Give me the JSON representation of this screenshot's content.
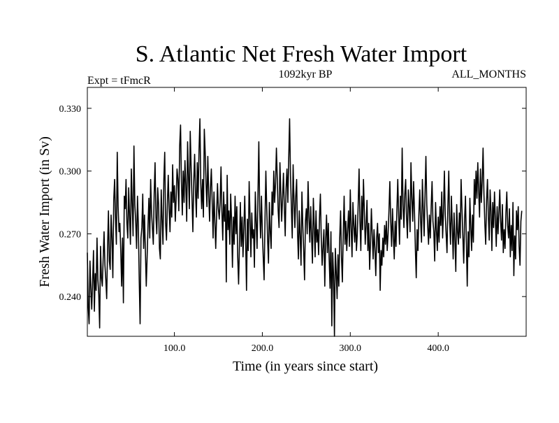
{
  "chart_data": {
    "type": "line",
    "title": "S. Atlantic Net Fresh Water Import",
    "experiment_label": "Expt = tFmcR",
    "period_label": "1092kyr BP",
    "months_label": "ALL_MONTHS",
    "xlabel": "Time (in years since start)",
    "ylabel": "Fresh Water Import (in Sv)",
    "xlim": [
      1,
      500
    ],
    "ylim": [
      0.221,
      0.34
    ],
    "x_ticks": [
      100,
      200,
      300,
      400
    ],
    "x_tick_labels": [
      "100.0",
      "200.0",
      "300.0",
      "400.0"
    ],
    "y_ticks": [
      0.24,
      0.27,
      0.3,
      0.33
    ],
    "y_tick_labels": [
      "0.240",
      "0.270",
      "0.300",
      "0.330"
    ],
    "grid": false,
    "series": [
      {
        "name": "Fresh Water Import",
        "x_start": 1,
        "x_step": 1,
        "values": [
          0.261,
          0.235,
          0.227,
          0.257,
          0.244,
          0.234,
          0.247,
          0.262,
          0.233,
          0.251,
          0.243,
          0.268,
          0.248,
          0.241,
          0.225,
          0.264,
          0.249,
          0.245,
          0.258,
          0.271,
          0.255,
          0.248,
          0.239,
          0.263,
          0.281,
          0.257,
          0.253,
          0.279,
          0.268,
          0.249,
          0.286,
          0.296,
          0.278,
          0.265,
          0.309,
          0.283,
          0.271,
          0.275,
          0.262,
          0.245,
          0.268,
          0.237,
          0.288,
          0.282,
          0.296,
          0.275,
          0.268,
          0.292,
          0.278,
          0.265,
          0.301,
          0.285,
          0.269,
          0.312,
          0.284,
          0.276,
          0.263,
          0.288,
          0.274,
          0.248,
          0.227,
          0.268,
          0.273,
          0.289,
          0.263,
          0.279,
          0.262,
          0.245,
          0.259,
          0.274,
          0.287,
          0.268,
          0.296,
          0.28,
          0.273,
          0.265,
          0.289,
          0.304,
          0.278,
          0.27,
          0.292,
          0.284,
          0.263,
          0.258,
          0.291,
          0.277,
          0.265,
          0.296,
          0.309,
          0.275,
          0.267,
          0.284,
          0.298,
          0.282,
          0.271,
          0.29,
          0.278,
          0.303,
          0.285,
          0.293,
          0.276,
          0.287,
          0.301,
          0.296,
          0.281,
          0.312,
          0.322,
          0.295,
          0.279,
          0.3,
          0.285,
          0.305,
          0.293,
          0.276,
          0.314,
          0.298,
          0.282,
          0.319,
          0.302,
          0.287,
          0.271,
          0.295,
          0.308,
          0.29,
          0.278,
          0.304,
          0.287,
          0.31,
          0.325,
          0.294,
          0.282,
          0.296,
          0.278,
          0.32,
          0.309,
          0.294,
          0.283,
          0.307,
          0.289,
          0.276,
          0.292,
          0.301,
          0.285,
          0.268,
          0.29,
          0.276,
          0.263,
          0.279,
          0.294,
          0.282,
          0.277,
          0.285,
          0.302,
          0.281,
          0.267,
          0.29,
          0.276,
          0.284,
          0.247,
          0.298,
          0.272,
          0.281,
          0.265,
          0.289,
          0.276,
          0.254,
          0.278,
          0.265,
          0.288,
          0.27,
          0.283,
          0.259,
          0.246,
          0.265,
          0.285,
          0.264,
          0.278,
          0.259,
          0.273,
          0.288,
          0.267,
          0.243,
          0.277,
          0.262,
          0.295,
          0.278,
          0.259,
          0.28,
          0.268,
          0.272,
          0.254,
          0.29,
          0.276,
          0.263,
          0.288,
          0.314,
          0.281,
          0.268,
          0.288,
          0.271,
          0.259,
          0.248,
          0.276,
          0.3,
          0.282,
          0.267,
          0.256,
          0.285,
          0.271,
          0.263,
          0.29,
          0.279,
          0.3,
          0.285,
          0.294,
          0.311,
          0.296,
          0.281,
          0.273,
          0.304,
          0.29,
          0.276,
          0.287,
          0.299,
          0.283,
          0.269,
          0.292,
          0.301,
          0.285,
          0.306,
          0.325,
          0.298,
          0.283,
          0.268,
          0.303,
          0.286,
          0.273,
          0.288,
          0.296,
          0.271,
          0.258,
          0.281,
          0.269,
          0.255,
          0.29,
          0.274,
          0.262,
          0.248,
          0.276,
          0.282,
          0.27,
          0.295,
          0.278,
          0.266,
          0.283,
          0.269,
          0.256,
          0.287,
          0.274,
          0.259,
          0.281,
          0.266,
          0.272,
          0.26,
          0.278,
          0.289,
          0.268,
          0.255,
          0.264,
          0.272,
          0.245,
          0.267,
          0.279,
          0.261,
          0.275,
          0.258,
          0.244,
          0.271,
          0.226,
          0.261,
          0.25,
          0.221,
          0.263,
          0.252,
          0.239,
          0.26,
          0.245,
          0.268,
          0.281,
          0.259,
          0.247,
          0.27,
          0.288,
          0.265,
          0.276,
          0.262,
          0.272,
          0.281,
          0.264,
          0.291,
          0.273,
          0.259,
          0.285,
          0.274,
          0.266,
          0.279,
          0.262,
          0.27,
          0.284,
          0.301,
          0.276,
          0.262,
          0.288,
          0.272,
          0.296,
          0.281,
          0.265,
          0.274,
          0.286,
          0.262,
          0.275,
          0.253,
          0.266,
          0.282,
          0.269,
          0.258,
          0.272,
          0.263,
          0.25,
          0.268,
          0.275,
          0.261,
          0.27,
          0.243,
          0.262,
          0.255,
          0.268,
          0.259,
          0.274,
          0.265,
          0.276,
          0.262,
          0.27,
          0.281,
          0.295,
          0.276,
          0.264,
          0.282,
          0.269,
          0.258,
          0.276,
          0.264,
          0.281,
          0.296,
          0.279,
          0.265,
          0.288,
          0.277,
          0.311,
          0.284,
          0.273,
          0.289,
          0.296,
          0.278,
          0.268,
          0.291,
          0.283,
          0.271,
          0.304,
          0.287,
          0.276,
          0.295,
          0.281,
          0.263,
          0.249,
          0.272,
          0.262,
          0.279,
          0.291,
          0.276,
          0.266,
          0.296,
          0.282,
          0.269,
          0.289,
          0.307,
          0.284,
          0.274,
          0.265,
          0.279,
          0.268,
          0.283,
          0.295,
          0.276,
          0.271,
          0.257,
          0.285,
          0.272,
          0.262,
          0.278,
          0.266,
          0.283,
          0.274,
          0.29,
          0.268,
          0.281,
          0.3,
          0.279,
          0.27,
          0.261,
          0.283,
          0.3,
          0.276,
          0.265,
          0.288,
          0.274,
          0.258,
          0.28,
          0.267,
          0.252,
          0.284,
          0.271,
          0.265,
          0.28,
          0.268,
          0.296,
          0.282,
          0.269,
          0.256,
          0.277,
          0.288,
          0.266,
          0.245,
          0.271,
          0.259,
          0.287,
          0.274,
          0.262,
          0.279,
          0.266,
          0.296,
          0.284,
          0.3,
          0.287,
          0.304,
          0.291,
          0.278,
          0.301,
          0.285,
          0.295,
          0.311,
          0.289,
          0.275,
          0.265,
          0.286,
          0.296,
          0.279,
          0.267,
          0.291,
          0.281,
          0.262,
          0.285,
          0.273,
          0.29,
          0.277,
          0.264,
          0.283,
          0.27,
          0.28,
          0.291,
          0.276,
          0.267,
          0.284,
          0.261,
          0.272,
          0.263,
          0.28,
          0.29,
          0.274,
          0.268,
          0.282,
          0.259,
          0.274,
          0.262,
          0.285,
          0.25,
          0.269,
          0.258,
          0.281,
          0.272,
          0.283,
          0.264,
          0.255,
          0.276,
          0.281
        ]
      }
    ]
  }
}
